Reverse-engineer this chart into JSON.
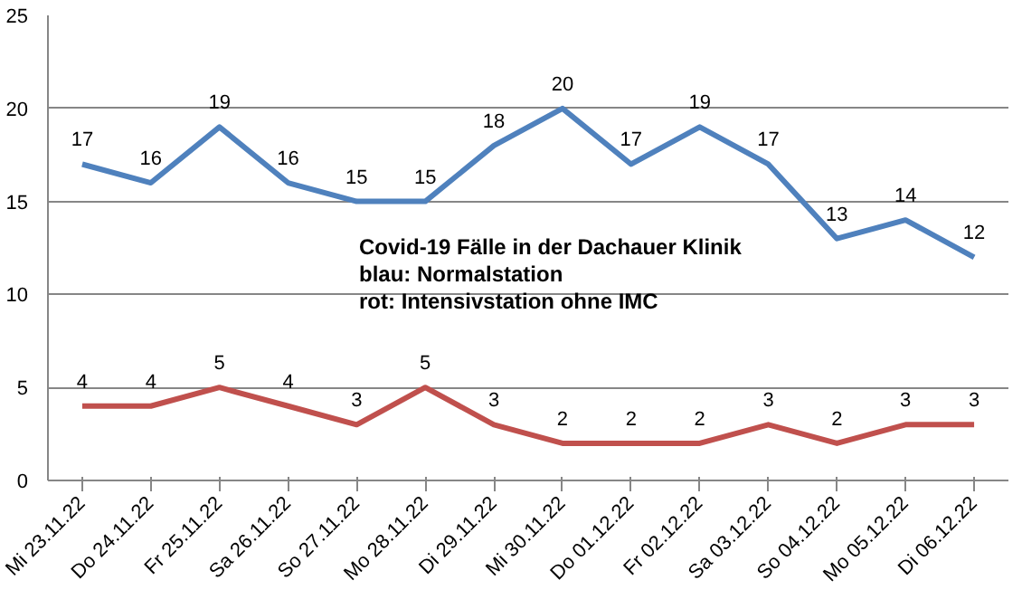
{
  "chart_data": {
    "type": "line",
    "categories": [
      "Mi 23.11.22",
      "Do 24.11.22",
      "Fr 25.11.22",
      "Sa 26.11.22",
      "So 27.11.22",
      "Mo 28.11.22",
      "Di 29.11.22",
      "Mi 30.11.22",
      "Do 01.12.22",
      "Fr 02.12.22",
      "Sa 03.12.22",
      "So 04.12.22",
      "Mo 05.12.22",
      "Di 06.12.22"
    ],
    "series": [
      {
        "color": "#4f81bd",
        "values": [
          17,
          16,
          19,
          16,
          15,
          15,
          18,
          20,
          17,
          19,
          17,
          13,
          14,
          12
        ]
      },
      {
        "color": "#c0504d",
        "values": [
          4,
          4,
          5,
          4,
          3,
          5,
          3,
          2,
          2,
          2,
          3,
          2,
          3,
          3
        ]
      }
    ],
    "ylim": [
      0,
      25
    ],
    "yticks": [
      0,
      5,
      10,
      15,
      20,
      25
    ],
    "grid": "y",
    "data_labels": true,
    "annotations": [
      "Covid-19 Fälle in der Dachauer Klinik",
      "blau: Normalstation",
      "rot: Intensivstation ohne IMC"
    ]
  }
}
